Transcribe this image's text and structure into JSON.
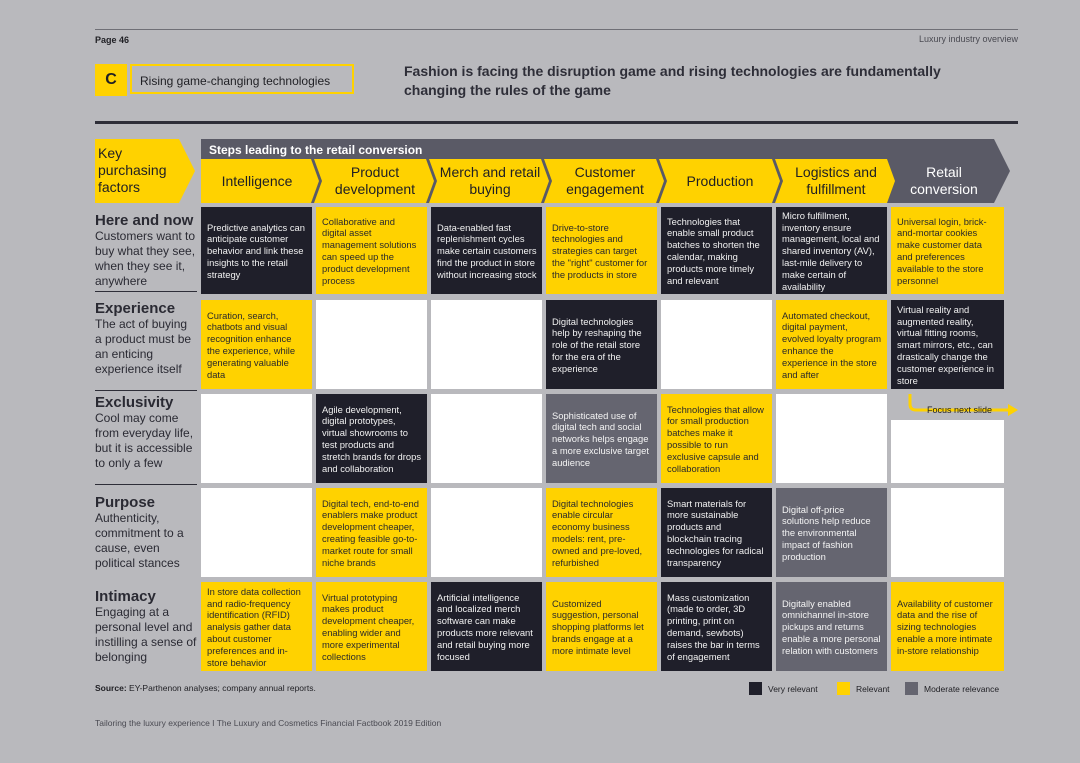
{
  "header": {
    "page": "Page 46",
    "doc_title": "Luxury industry overview"
  },
  "section": {
    "letter": "C",
    "label": "Rising game-changing technologies"
  },
  "headline": "Fashion is facing the disruption game and rising technologies are fundamentally changing the rules of the game",
  "key_purchasing_factors": "Key purchasing factors",
  "steps_title": "Steps leading to the retail conversion",
  "stages": [
    "Intelligence",
    "Product development",
    "Merch and retail buying",
    "Customer engagement",
    "Production",
    "Logistics and fulfillment",
    "Retail conversion"
  ],
  "rows": [
    {
      "title": "Here and now",
      "subtitle": "Customers want to buy what they see, when they see it, anywhere",
      "cells": [
        {
          "level": "dark",
          "text": "Predictive analytics can anticipate customer behavior and link these insights to the retail strategy"
        },
        {
          "level": "yellow",
          "text": "Collaborative and digital asset management solutions can speed up the product development process"
        },
        {
          "level": "dark",
          "text": "Data-enabled fast replenishment cycles make certain customers find the product in store without increasing stock"
        },
        {
          "level": "yellow",
          "text": "Drive-to-store technologies and strategies can target the \"right\" customer for the products in store"
        },
        {
          "level": "dark",
          "text": "Technologies that enable small product batches to shorten the calendar, making products more timely and relevant"
        },
        {
          "level": "dark",
          "text": "Micro fulfillment, inventory ensure management, local and shared inventory (AV), last-mile delivery to make certain of availability"
        },
        {
          "level": "yellow",
          "text": "Universal login, brick-and-mortar cookies make customer data and preferences available to the store personnel"
        }
      ]
    },
    {
      "title": "Experience",
      "subtitle": "The act of buying a product must be an enticing experience itself",
      "cells": [
        {
          "level": "yellow",
          "text": "Curation, search, chatbots and visual recognition enhance the experience, while generating valuable data"
        },
        {
          "level": "white",
          "text": ""
        },
        {
          "level": "white",
          "text": ""
        },
        {
          "level": "dark",
          "text": "Digital technologies help by reshaping the role of the retail store for the era of the experience"
        },
        {
          "level": "white",
          "text": ""
        },
        {
          "level": "yellow",
          "text": "Automated checkout, digital payment, evolved loyalty program enhance the experience in the store and after"
        },
        {
          "level": "dark",
          "text": "Virtual reality and augmented reality, virtual fitting rooms, smart mirrors, etc., can drastically change the customer experience in store"
        }
      ]
    },
    {
      "title": "Exclusivity",
      "subtitle": "Cool may come from everyday life, but it is accessible to only a few",
      "cells": [
        {
          "level": "white",
          "text": ""
        },
        {
          "level": "dark",
          "text": "Agile development, digital prototypes, virtual showrooms to test products and stretch brands for drops and collaboration"
        },
        {
          "level": "white",
          "text": ""
        },
        {
          "level": "grey",
          "text": "Sophisticated use of digital tech and social networks helps engage a more exclusive target audience"
        },
        {
          "level": "yellow",
          "text": "Technologies that allow for small production batches make it possible to run exclusive capsule and collaboration"
        },
        {
          "level": "white",
          "text": ""
        },
        {
          "level": "white",
          "text": ""
        }
      ]
    },
    {
      "title": "Purpose",
      "subtitle": "Authenticity, commitment to a cause, even political stances",
      "cells": [
        {
          "level": "white",
          "text": ""
        },
        {
          "level": "yellow",
          "text": "Digital tech, end-to-end enablers make product development cheaper, creating feasible go-to-market route for small niche brands"
        },
        {
          "level": "white",
          "text": ""
        },
        {
          "level": "yellow",
          "text": "Digital technologies enable circular economy business models: rent, pre-owned and pre-loved, refurbished"
        },
        {
          "level": "dark",
          "text": "Smart materials for more sustainable products and blockchain tracing technologies for radical transparency"
        },
        {
          "level": "grey",
          "text": "Digital off-price solutions help reduce the environmental impact of fashion production"
        },
        {
          "level": "white",
          "text": ""
        }
      ]
    },
    {
      "title": "Intimacy",
      "subtitle": "Engaging at a personal level and instilling a sense of belonging",
      "cells": [
        {
          "level": "yellow",
          "text": "In store data collection and radio-frequency identification (RFID) analysis gather data about customer preferences and in-store behavior"
        },
        {
          "level": "yellow",
          "text": "Virtual prototyping makes product development cheaper, enabling wider and more experimental collections"
        },
        {
          "level": "dark",
          "text": "Artificial intelligence and localized merch software can make products more relevant and retail buying more focused"
        },
        {
          "level": "yellow",
          "text": "Customized suggestion, personal shopping platforms let brands engage at a more intimate level"
        },
        {
          "level": "dark",
          "text": "Mass customization (made to order, 3D printing, print on demand, sewbots) raises the bar in terms of engagement"
        },
        {
          "level": "grey",
          "text": "Digitally enabled omnichannel in-store pickups and returns enable a more personal relation with customers"
        },
        {
          "level": "yellow",
          "text": "Availability of customer data and the rise of sizing technologies enable a more intimate in-store relationship"
        }
      ]
    }
  ],
  "focus_label": "Focus next slide",
  "source": {
    "label": "Source:",
    "text": "EY-Parthenon analyses; company annual reports."
  },
  "legend": [
    {
      "label": "Very relevant",
      "color": "#1f1f2a"
    },
    {
      "label": "Relevant",
      "color": "#ffd200"
    },
    {
      "label": "Moderate relevance",
      "color": "#656570"
    }
  ],
  "footer": "Tailoring the luxury experience I The Luxury and Cosmetics Financial Factbook 2019 Edition"
}
